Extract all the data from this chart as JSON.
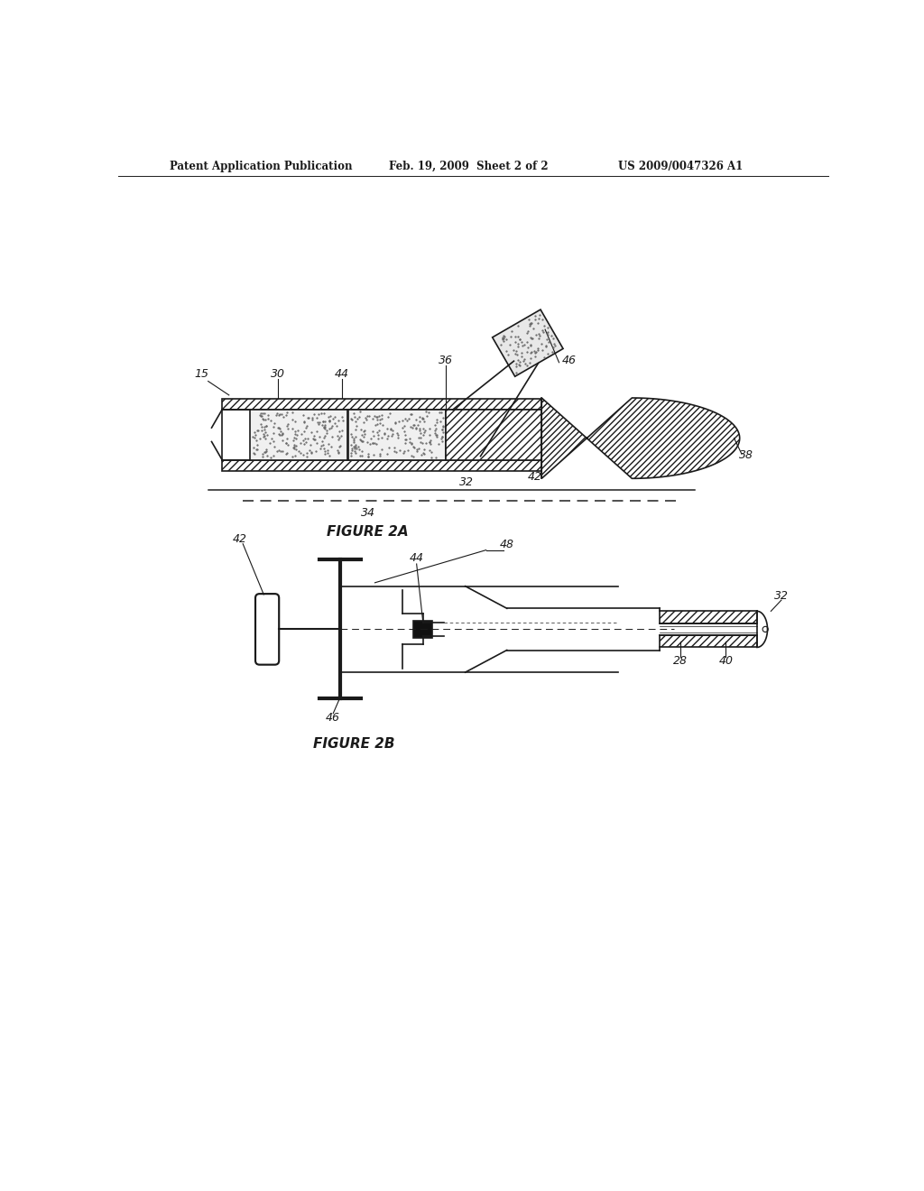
{
  "bg_color": "#ffffff",
  "header_left": "Patent Application Publication",
  "header_mid": "Feb. 19, 2009  Sheet 2 of 2",
  "header_right": "US 2009/0047326 A1",
  "fig2a_label": "FIGURE 2A",
  "fig2b_label": "FIGURE 2B",
  "lc": "#1a1a1a",
  "lw": 1.2
}
